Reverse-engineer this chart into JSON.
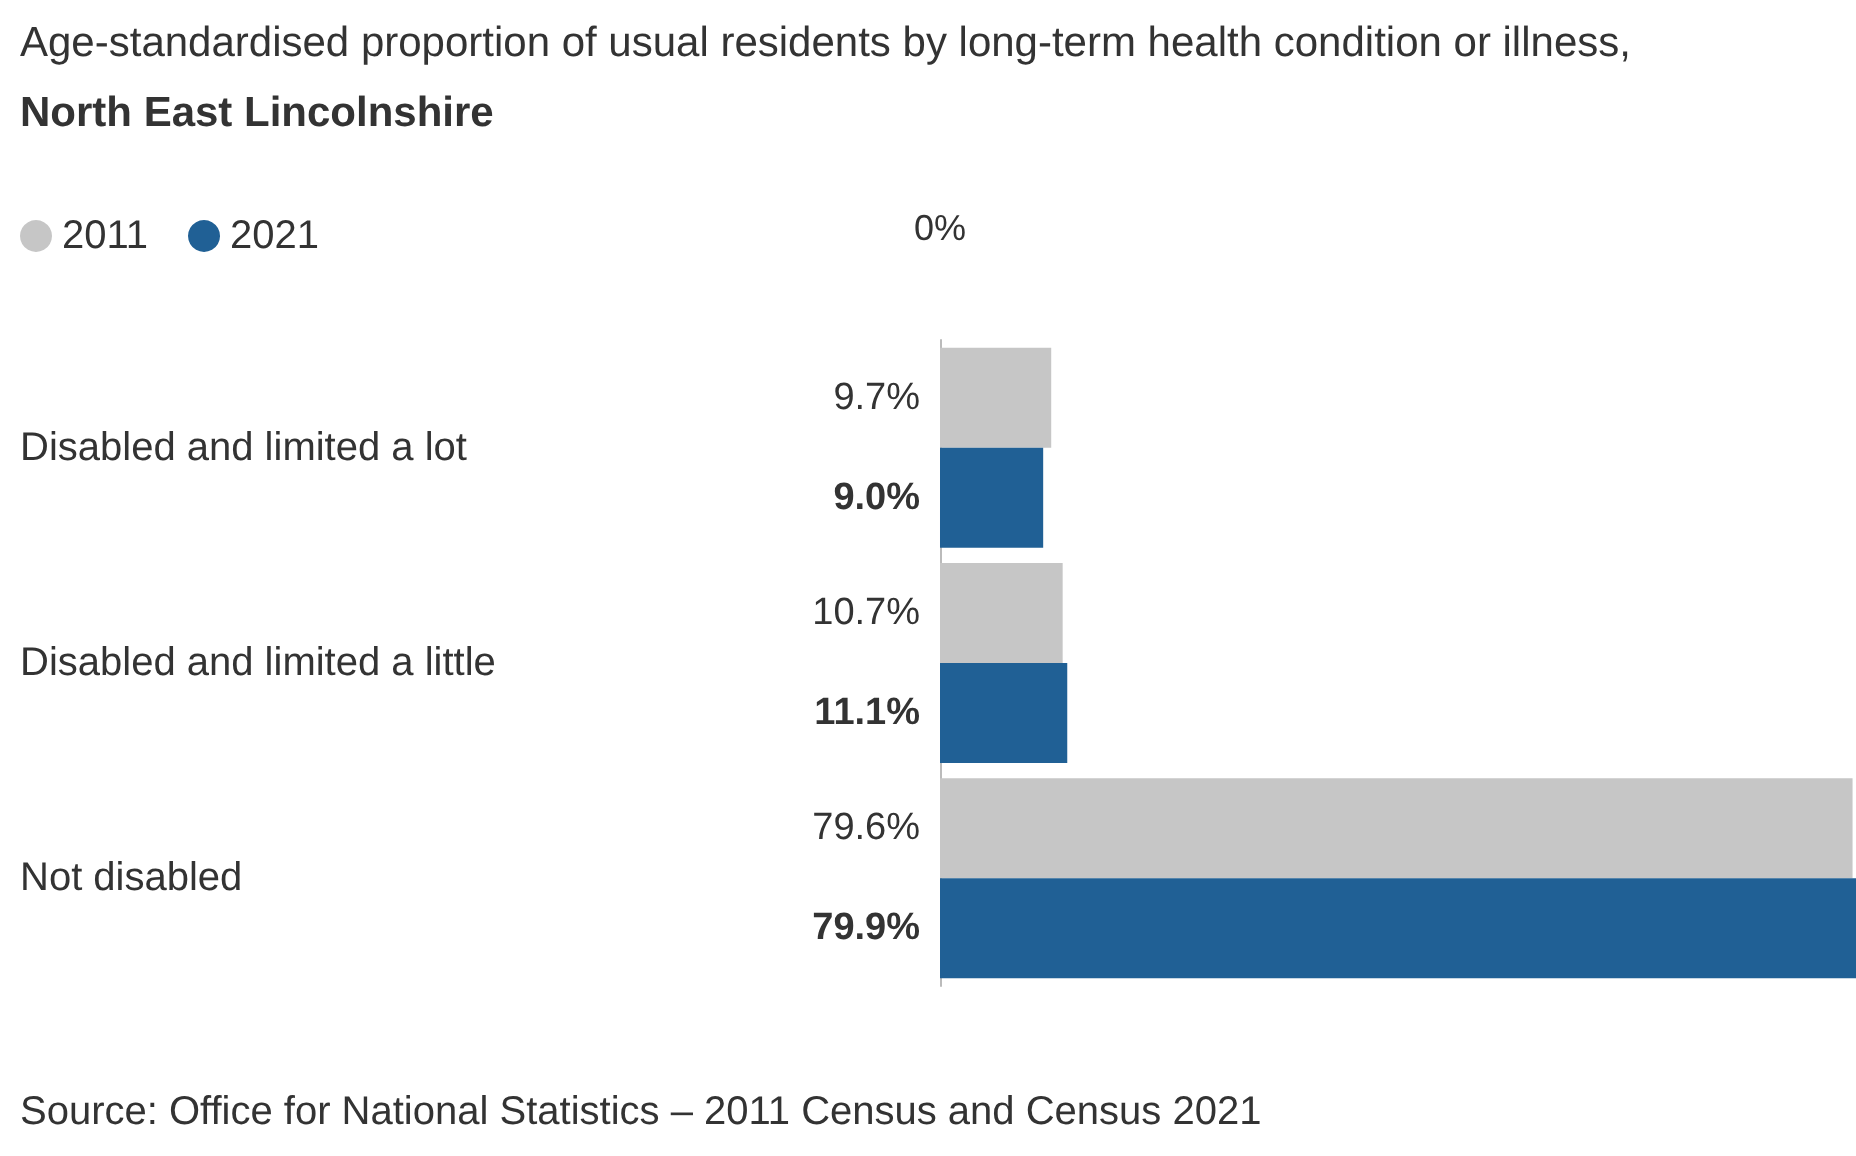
{
  "chart_data": {
    "type": "bar",
    "orientation": "horizontal",
    "title": "Age-standardised proportion of usual residents by long-term health condition or illness, North East Lincolnshire",
    "categories": [
      "Disabled and limited a lot",
      "Disabled and limited a little",
      "Not disabled"
    ],
    "series": [
      {
        "name": "2011",
        "color": "#c6c6c6",
        "values": [
          9.7,
          10.7,
          79.6
        ],
        "value_labels": [
          "9.7%",
          "10.7%",
          "79.6%"
        ]
      },
      {
        "name": "2021",
        "color": "#206095",
        "values": [
          9.0,
          11.1,
          79.9
        ],
        "value_labels": [
          "9.0%",
          "11.1%",
          "79.9%"
        ]
      }
    ],
    "grid": false,
    "legend": "top left",
    "annotations": [
      "0%",
      "Source: Office for National Statistics – 2011 Census and Census 2021"
    ]
  }
}
